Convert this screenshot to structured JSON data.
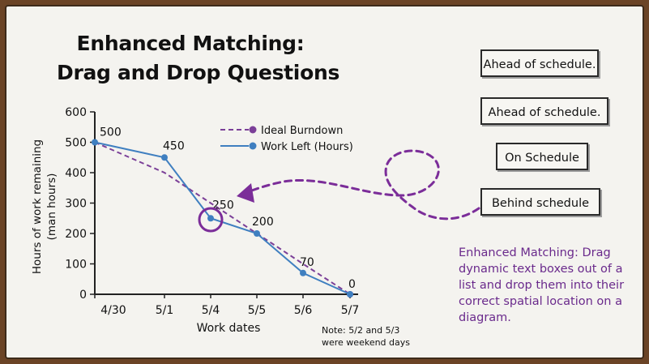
{
  "slide": {
    "title_line1": "Enhanced Matching:",
    "title_line2": "Drag and Drop Questions",
    "description": "Enhanced Matching: Drag dynamic text boxes out of a list and drop them into their correct spatial location on a diagram."
  },
  "drag_items": [
    {
      "label": "Ahead of schedule."
    },
    {
      "label": "Ahead of schedule."
    },
    {
      "label": "On Schedule"
    },
    {
      "label": "Behind schedule"
    }
  ],
  "colors": {
    "ideal_line": "#7b3f98",
    "work_line": "#3f7fc0",
    "annotation": "#7b2d99",
    "board_frame": "#6b4426"
  },
  "chart_data": {
    "type": "line",
    "categories": [
      "4/30",
      "5/1",
      "5/4",
      "5/5",
      "5/6",
      "5/7"
    ],
    "series": [
      {
        "name": "Ideal Burndown",
        "values": [
          500,
          400,
          300,
          200,
          100,
          0
        ],
        "style": "dashed",
        "marker": "end-dot"
      },
      {
        "name": "Work Left (Hours)",
        "values": [
          500,
          450,
          250,
          200,
          70,
          0
        ],
        "style": "solid"
      }
    ],
    "data_labels": [
      "500",
      "450",
      "250",
      "200",
      "70",
      "0"
    ],
    "xlabel": "Work dates",
    "ylabel_line1": "Hours of work remaining",
    "ylabel_line2": "(man hours)",
    "ylim": [
      0,
      600
    ],
    "yticks": [
      0,
      100,
      200,
      300,
      400,
      500,
      600
    ],
    "legend_position": "top-right",
    "note_line1": "Note: 5/2 and 5/3",
    "note_line2": "were weekend days",
    "highlighted_point": "5/4"
  }
}
